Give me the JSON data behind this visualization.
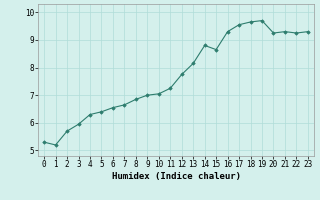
{
  "x": [
    0,
    1,
    2,
    3,
    4,
    5,
    6,
    7,
    8,
    9,
    10,
    11,
    12,
    13,
    14,
    15,
    16,
    17,
    18,
    19,
    20,
    21,
    22,
    23
  ],
  "y": [
    5.3,
    5.2,
    5.7,
    5.95,
    6.3,
    6.4,
    6.55,
    6.65,
    6.85,
    7.0,
    7.05,
    7.25,
    7.75,
    8.15,
    8.8,
    8.65,
    9.3,
    9.55,
    9.65,
    9.7,
    9.25,
    9.3,
    9.25,
    9.3
  ],
  "xlabel": "Humidex (Indice chaleur)",
  "xlim": [
    -0.5,
    23.5
  ],
  "ylim": [
    4.8,
    10.3
  ],
  "yticks": [
    5,
    6,
    7,
    8,
    9,
    10
  ],
  "xticks": [
    0,
    1,
    2,
    3,
    4,
    5,
    6,
    7,
    8,
    9,
    10,
    11,
    12,
    13,
    14,
    15,
    16,
    17,
    18,
    19,
    20,
    21,
    22,
    23
  ],
  "line_color": "#2e7d6e",
  "marker_color": "#2e7d6e",
  "bg_color": "#d4f0ec",
  "grid_color": "#b0ddd8",
  "tick_label_fontsize": 5.5,
  "xlabel_fontsize": 6.5
}
